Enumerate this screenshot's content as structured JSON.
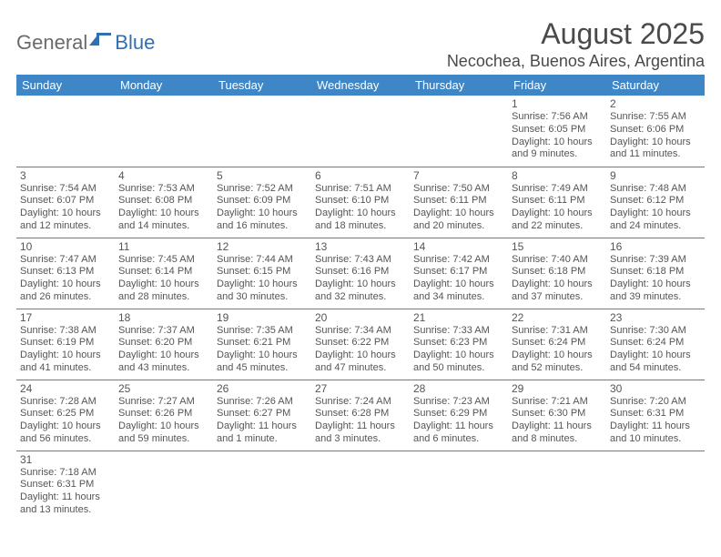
{
  "logo": {
    "text_left": "General",
    "text_right": "Blue",
    "flag_color": "#2f6fb3",
    "left_color": "#6a6a6a"
  },
  "header": {
    "month_title": "August 2025",
    "location": "Necochea, Buenos Aires, Argentina"
  },
  "calendar": {
    "header_bg": "#3f86c7",
    "header_fg": "#ffffff",
    "border_color": "#3f86c7",
    "text_color": "#555555",
    "weekdays": [
      "Sunday",
      "Monday",
      "Tuesday",
      "Wednesday",
      "Thursday",
      "Friday",
      "Saturday"
    ],
    "weeks": [
      [
        null,
        null,
        null,
        null,
        null,
        {
          "n": "1",
          "sunrise": "7:56 AM",
          "sunset": "6:05 PM",
          "daylight": "10 hours and 9 minutes."
        },
        {
          "n": "2",
          "sunrise": "7:55 AM",
          "sunset": "6:06 PM",
          "daylight": "10 hours and 11 minutes."
        }
      ],
      [
        {
          "n": "3",
          "sunrise": "7:54 AM",
          "sunset": "6:07 PM",
          "daylight": "10 hours and 12 minutes."
        },
        {
          "n": "4",
          "sunrise": "7:53 AM",
          "sunset": "6:08 PM",
          "daylight": "10 hours and 14 minutes."
        },
        {
          "n": "5",
          "sunrise": "7:52 AM",
          "sunset": "6:09 PM",
          "daylight": "10 hours and 16 minutes."
        },
        {
          "n": "6",
          "sunrise": "7:51 AM",
          "sunset": "6:10 PM",
          "daylight": "10 hours and 18 minutes."
        },
        {
          "n": "7",
          "sunrise": "7:50 AM",
          "sunset": "6:11 PM",
          "daylight": "10 hours and 20 minutes."
        },
        {
          "n": "8",
          "sunrise": "7:49 AM",
          "sunset": "6:11 PM",
          "daylight": "10 hours and 22 minutes."
        },
        {
          "n": "9",
          "sunrise": "7:48 AM",
          "sunset": "6:12 PM",
          "daylight": "10 hours and 24 minutes."
        }
      ],
      [
        {
          "n": "10",
          "sunrise": "7:47 AM",
          "sunset": "6:13 PM",
          "daylight": "10 hours and 26 minutes."
        },
        {
          "n": "11",
          "sunrise": "7:45 AM",
          "sunset": "6:14 PM",
          "daylight": "10 hours and 28 minutes."
        },
        {
          "n": "12",
          "sunrise": "7:44 AM",
          "sunset": "6:15 PM",
          "daylight": "10 hours and 30 minutes."
        },
        {
          "n": "13",
          "sunrise": "7:43 AM",
          "sunset": "6:16 PM",
          "daylight": "10 hours and 32 minutes."
        },
        {
          "n": "14",
          "sunrise": "7:42 AM",
          "sunset": "6:17 PM",
          "daylight": "10 hours and 34 minutes."
        },
        {
          "n": "15",
          "sunrise": "7:40 AM",
          "sunset": "6:18 PM",
          "daylight": "10 hours and 37 minutes."
        },
        {
          "n": "16",
          "sunrise": "7:39 AM",
          "sunset": "6:18 PM",
          "daylight": "10 hours and 39 minutes."
        }
      ],
      [
        {
          "n": "17",
          "sunrise": "7:38 AM",
          "sunset": "6:19 PM",
          "daylight": "10 hours and 41 minutes."
        },
        {
          "n": "18",
          "sunrise": "7:37 AM",
          "sunset": "6:20 PM",
          "daylight": "10 hours and 43 minutes."
        },
        {
          "n": "19",
          "sunrise": "7:35 AM",
          "sunset": "6:21 PM",
          "daylight": "10 hours and 45 minutes."
        },
        {
          "n": "20",
          "sunrise": "7:34 AM",
          "sunset": "6:22 PM",
          "daylight": "10 hours and 47 minutes."
        },
        {
          "n": "21",
          "sunrise": "7:33 AM",
          "sunset": "6:23 PM",
          "daylight": "10 hours and 50 minutes."
        },
        {
          "n": "22",
          "sunrise": "7:31 AM",
          "sunset": "6:24 PM",
          "daylight": "10 hours and 52 minutes."
        },
        {
          "n": "23",
          "sunrise": "7:30 AM",
          "sunset": "6:24 PM",
          "daylight": "10 hours and 54 minutes."
        }
      ],
      [
        {
          "n": "24",
          "sunrise": "7:28 AM",
          "sunset": "6:25 PM",
          "daylight": "10 hours and 56 minutes."
        },
        {
          "n": "25",
          "sunrise": "7:27 AM",
          "sunset": "6:26 PM",
          "daylight": "10 hours and 59 minutes."
        },
        {
          "n": "26",
          "sunrise": "7:26 AM",
          "sunset": "6:27 PM",
          "daylight": "11 hours and 1 minute."
        },
        {
          "n": "27",
          "sunrise": "7:24 AM",
          "sunset": "6:28 PM",
          "daylight": "11 hours and 3 minutes."
        },
        {
          "n": "28",
          "sunrise": "7:23 AM",
          "sunset": "6:29 PM",
          "daylight": "11 hours and 6 minutes."
        },
        {
          "n": "29",
          "sunrise": "7:21 AM",
          "sunset": "6:30 PM",
          "daylight": "11 hours and 8 minutes."
        },
        {
          "n": "30",
          "sunrise": "7:20 AM",
          "sunset": "6:31 PM",
          "daylight": "11 hours and 10 minutes."
        }
      ],
      [
        {
          "n": "31",
          "sunrise": "7:18 AM",
          "sunset": "6:31 PM",
          "daylight": "11 hours and 13 minutes."
        },
        null,
        null,
        null,
        null,
        null,
        null
      ]
    ],
    "labels": {
      "sunrise": "Sunrise:",
      "sunset": "Sunset:",
      "daylight": "Daylight:"
    }
  }
}
